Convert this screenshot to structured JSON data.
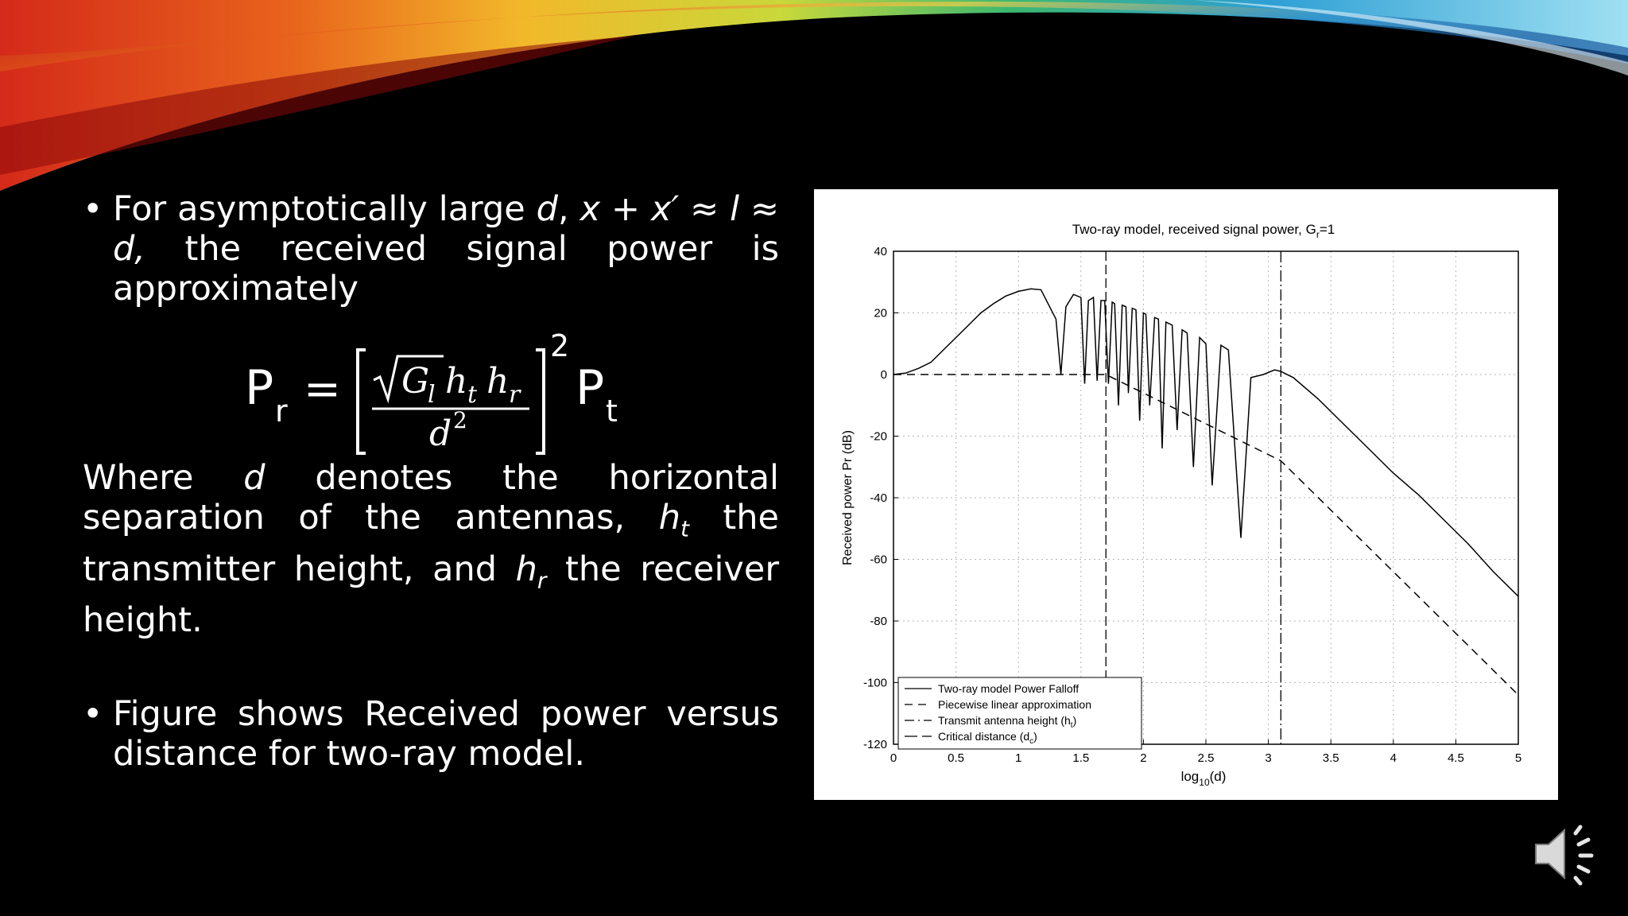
{
  "slide": {
    "bullet1": {
      "text_pre": "For asymptotically large ",
      "var_d": "d",
      "text_mid": ", ",
      "expr": "x + x′ ≈ l ≈ d,",
      "text_post": " the received signal power is approximately"
    },
    "formula": {
      "lhs_main": "P",
      "lhs_sub": "r",
      "equals": "=",
      "sqrt_body": "G",
      "sqrt_sub": "l",
      "h1": "h",
      "h1_sub": "t",
      "h2": "h",
      "h2_sub": "r",
      "denominator": "d",
      "denominator_exp": "2",
      "exponent": "2",
      "rhs_main": "P",
      "rhs_sub": "t"
    },
    "paragraph": {
      "p1": "Where ",
      "var_d": "d",
      "p2": " denotes the horizontal separation of the antennas, ",
      "ht": "h",
      "ht_sub": "t",
      "p3": " the transmitter height, and ",
      "hr": "h",
      "hr_sub": "r",
      "p4": " the receiver height."
    },
    "bullet2": "Figure shows Received power versus distance for two-ray model."
  },
  "icons": {
    "bullet": "•",
    "speaker": "speaker-icon"
  },
  "colors": {
    "background": "#000000",
    "text": "#ffffff",
    "figure_bg": "#ffffff"
  },
  "chart_data": {
    "type": "line",
    "title": "Two-ray model, received signal power, G",
    "title_sub": "r",
    "title_suffix": "=1",
    "xlabel": "log",
    "xlabel_sub": "10",
    "xlabel_suffix": "(d)",
    "ylabel": "Received power Pr (dB)",
    "xlim": [
      0,
      5
    ],
    "ylim": [
      -120,
      40
    ],
    "xticks": [
      0,
      0.5,
      1,
      1.5,
      2,
      2.5,
      3,
      3.5,
      4,
      4.5,
      5
    ],
    "xtick_labels": [
      "0",
      "0.5",
      "1",
      "1.5",
      "2",
      "2.5",
      "3",
      "3.5",
      "4",
      "4.5",
      "5"
    ],
    "yticks": [
      40,
      20,
      0,
      -20,
      -40,
      -60,
      -80,
      -100,
      -120
    ],
    "ytick_labels": [
      "40",
      "20",
      "0",
      "-20",
      "-40",
      "-60",
      "-80",
      "-100",
      "-120"
    ],
    "grid": true,
    "legend_position": "bottom-left",
    "vertical_lines": [
      {
        "x": 1.7,
        "series": "Transmit antenna height (h)"
      },
      {
        "x": 3.1,
        "series": "Critical distance (d)"
      }
    ],
    "series": [
      {
        "name": "Two-ray model Power Falloff",
        "style": "solid",
        "x": [
          0,
          0.1,
          0.2,
          0.3,
          0.4,
          0.5,
          0.6,
          0.7,
          0.8,
          0.9,
          1.0,
          1.1,
          1.18,
          1.3,
          1.34,
          1.38,
          1.44,
          1.5,
          1.53,
          1.56,
          1.6,
          1.63,
          1.66,
          1.69,
          1.72,
          1.75,
          1.77,
          1.8,
          1.83,
          1.86,
          1.88,
          1.91,
          1.94,
          1.97,
          2.0,
          2.02,
          2.05,
          2.09,
          2.12,
          2.15,
          2.18,
          2.23,
          2.27,
          2.31,
          2.35,
          2.4,
          2.45,
          2.5,
          2.55,
          2.62,
          2.68,
          2.78,
          2.86,
          2.96,
          3.05,
          3.1,
          3.2,
          3.4,
          3.6,
          3.8,
          4.0,
          4.2,
          4.4,
          4.6,
          4.8,
          5.0
        ],
        "y": [
          0,
          0.5,
          2,
          4,
          8,
          12,
          16,
          20,
          23,
          25.5,
          27,
          27.8,
          27.5,
          18,
          0,
          22,
          26,
          25,
          -3,
          24,
          25,
          -2,
          24,
          24,
          -3,
          23.5,
          23,
          -10,
          22.5,
          22,
          -6,
          21.5,
          21,
          -15,
          20,
          19.5,
          -10,
          18.5,
          18,
          -24,
          17,
          16,
          -18,
          14.5,
          13.5,
          -30,
          12,
          10,
          -36,
          9.5,
          8,
          -53,
          -1,
          0,
          1.5,
          1,
          -1,
          -8,
          -16,
          -24,
          -32,
          -39,
          -47,
          -55,
          -64,
          -72
        ]
      },
      {
        "name": "Piecewise linear approximation",
        "style": "dashed",
        "x": [
          0,
          1.7,
          3.1,
          5
        ],
        "y": [
          0,
          0,
          -28,
          -104
        ]
      }
    ],
    "legend": [
      {
        "label": "Two-ray model Power Falloff",
        "style": "solid"
      },
      {
        "label": "Piecewise linear approximation",
        "style": "dashed"
      },
      {
        "label": "Transmit antenna height (h",
        "sub": "t",
        "suffix": ")",
        "style": "dashdot"
      },
      {
        "label": "Critical distance (d",
        "sub": "c",
        "suffix": ")",
        "style": "longdash"
      }
    ]
  }
}
